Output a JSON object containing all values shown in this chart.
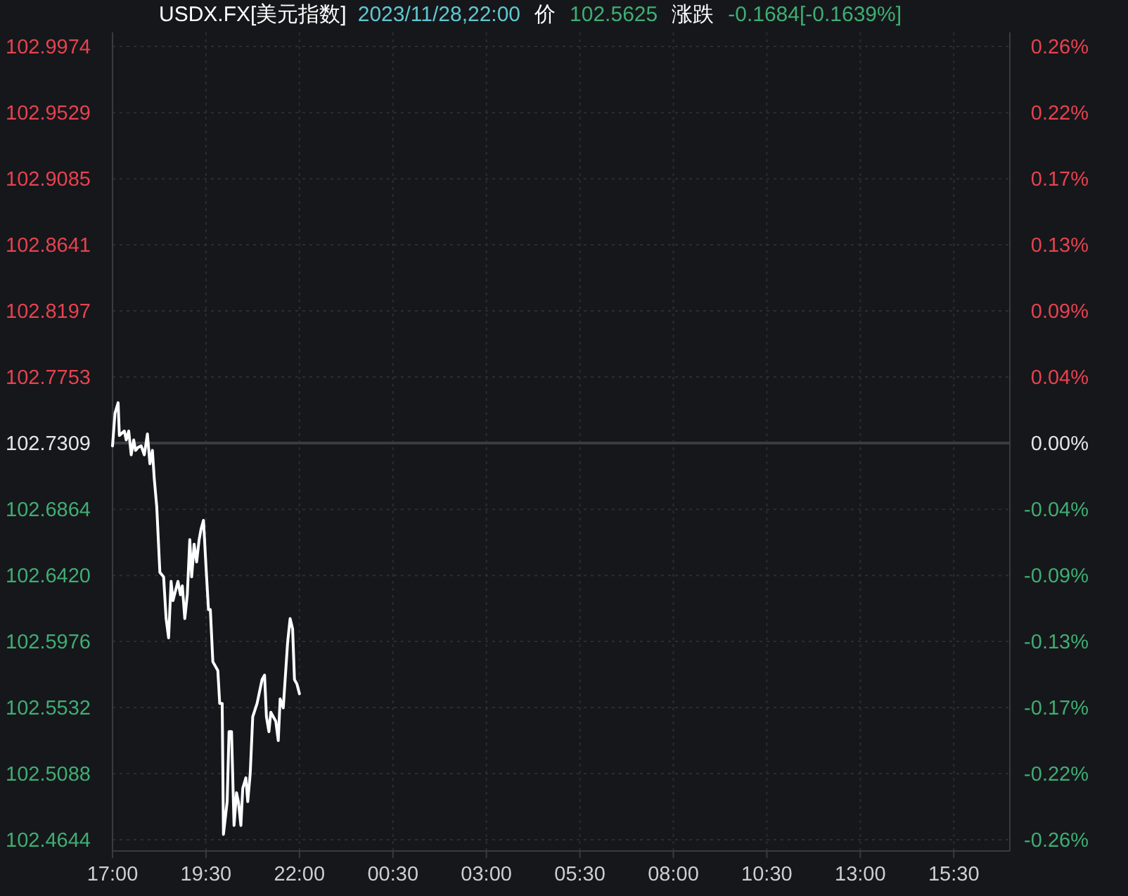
{
  "chart_data": {
    "type": "line",
    "title": "USDX.FX[美元指数]",
    "subtitle": "2023/11/28,22:00",
    "annotations": [
      "价",
      "102.5625",
      "涨跌",
      "-0.1684[-0.1639%]"
    ],
    "x": [
      "2023-11-28T17:00",
      "2023-11-28T17:04",
      "2023-11-28T17:09",
      "2023-11-28T17:11",
      "2023-11-28T17:19",
      "2023-11-28T17:22",
      "2023-11-28T17:26",
      "2023-11-28T17:30",
      "2023-11-28T17:34",
      "2023-11-28T17:37",
      "2023-11-28T17:41",
      "2023-11-28T17:46",
      "2023-11-28T17:51",
      "2023-11-28T17:56",
      "2023-11-28T18:00",
      "2023-11-28T18:04",
      "2023-11-28T18:07",
      "2023-11-28T18:11",
      "2023-11-28T18:16",
      "2023-11-28T18:22",
      "2023-11-28T18:26",
      "2023-11-28T18:30",
      "2023-11-28T18:34",
      "2023-11-28T18:37",
      "2023-11-28T18:45",
      "2023-11-28T18:49",
      "2023-11-28T18:52",
      "2023-11-28T18:56",
      "2023-11-28T19:00",
      "2023-11-28T19:04",
      "2023-11-28T19:07",
      "2023-11-28T19:11",
      "2023-11-28T19:15",
      "2023-11-28T19:19",
      "2023-11-28T19:22",
      "2023-11-28T19:26",
      "2023-11-28T19:30",
      "2023-11-28T19:34",
      "2023-11-28T19:37",
      "2023-11-28T19:41",
      "2023-11-28T19:49",
      "2023-11-28T19:52",
      "2023-11-28T19:56",
      "2023-11-28T19:58",
      "2023-11-28T20:04",
      "2023-11-28T20:07",
      "2023-11-28T20:11",
      "2023-11-28T20:15",
      "2023-11-28T20:19",
      "2023-11-28T20:22",
      "2023-11-28T20:26",
      "2023-11-28T20:29",
      "2023-11-28T20:34",
      "2023-11-28T20:37",
      "2023-11-28T20:41",
      "2023-11-28T20:45",
      "2023-11-28T20:52",
      "2023-11-28T21:00",
      "2023-11-28T21:04",
      "2023-11-28T21:07",
      "2023-11-28T21:11",
      "2023-11-28T21:14",
      "2023-11-28T21:22",
      "2023-11-28T21:26",
      "2023-11-28T21:29",
      "2023-11-28T21:34",
      "2023-11-28T21:37",
      "2023-11-28T21:41",
      "2023-11-28T21:45",
      "2023-11-28T21:49",
      "2023-11-28T21:52",
      "2023-11-28T21:56",
      "2023-11-28T22:00"
    ],
    "series": [
      {
        "color": "#ffffff",
        "values": [
          102.729,
          102.751,
          102.758,
          102.736,
          102.739,
          102.733,
          102.739,
          102.723,
          102.733,
          102.726,
          102.728,
          102.729,
          102.723,
          102.737,
          102.717,
          102.726,
          102.707,
          102.688,
          102.644,
          102.641,
          102.613,
          102.6,
          102.638,
          102.625,
          102.638,
          102.629,
          102.635,
          102.613,
          102.629,
          102.666,
          102.641,
          102.663,
          102.651,
          102.666,
          102.673,
          102.679,
          102.648,
          102.619,
          102.619,
          102.584,
          102.578,
          102.556,
          102.556,
          102.468,
          102.49,
          102.537,
          102.537,
          102.474,
          102.496,
          102.49,
          102.474,
          102.499,
          102.506,
          102.49,
          102.509,
          102.547,
          102.556,
          102.572,
          102.575,
          102.547,
          102.537,
          102.55,
          102.544,
          102.531,
          102.559,
          102.553,
          102.572,
          102.597,
          102.613,
          102.606,
          102.572,
          102.569,
          102.5625
        ]
      }
    ],
    "xlim": [
      "2023-11-28T17:00",
      "2023-11-29T17:00"
    ],
    "xticks": [
      {
        "value": "2023-11-28T17:00",
        "label": "17:00"
      },
      {
        "value": "2023-11-28T19:30",
        "label": "19:30"
      },
      {
        "value": "2023-11-28T22:00",
        "label": "22:00"
      },
      {
        "value": "2023-11-29T00:30",
        "label": "00:30"
      },
      {
        "value": "2023-11-29T03:00",
        "label": "03:00"
      },
      {
        "value": "2023-11-29T05:30",
        "label": "05:30"
      },
      {
        "value": "2023-11-29T08:00",
        "label": "08:00"
      },
      {
        "value": "2023-11-29T10:30",
        "label": "10:30"
      },
      {
        "value": "2023-11-29T13:00",
        "label": "13:00"
      },
      {
        "value": "2023-11-29T15:30",
        "label": "15:30"
      }
    ],
    "ylim": [
      102.4644,
      102.9974
    ],
    "yticks": [
      102.9974,
      102.9529,
      102.9085,
      102.8641,
      102.8197,
      102.7753,
      102.7309,
      102.6864,
      {
        "value": 102.642,
        "label": "102.6420"
      },
      102.5976,
      102.5532,
      102.5088,
      102.4644
    ],
    "y2lim": [
      -0.2594,
      0.2594
    ],
    "y2ticks": [
      {
        "value": 0.2594,
        "label": "0.26%"
      },
      {
        "value": 0.2161,
        "label": "0.22%"
      },
      {
        "value": 0.1729,
        "label": "0.17%"
      },
      {
        "value": 0.1297,
        "label": "0.13%"
      },
      {
        "value": 0.0864,
        "label": "0.09%"
      },
      {
        "value": 0.0432,
        "label": "0.04%"
      },
      {
        "value": 0,
        "label": "0.00%"
      },
      {
        "value": -0.0432,
        "label": "-0.04%"
      },
      {
        "value": -0.0864,
        "label": "-0.09%"
      },
      {
        "value": -0.1297,
        "label": "-0.13%"
      },
      {
        "value": -0.1729,
        "label": "-0.17%"
      },
      {
        "value": -0.2161,
        "label": "-0.22%"
      },
      {
        "value": -0.2594,
        "label": "-0.26%"
      }
    ],
    "ref_lines": [
      {
        "axis": "y",
        "value": 102.7309,
        "color": "#3a3b40"
      }
    ],
    "grid": true
  }
}
